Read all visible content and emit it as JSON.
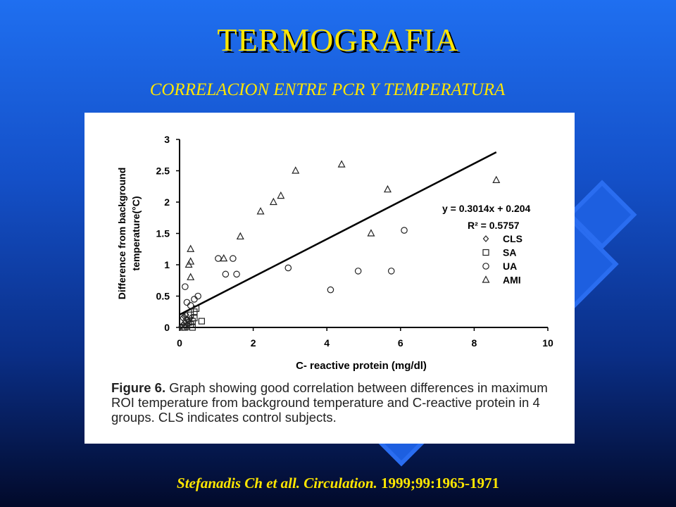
{
  "slide": {
    "title": "TERMOGRAFIA",
    "subtitle": "CORRELACION ENTRE PCR Y TEMPERATURA",
    "citation_authors": "Stefanadis Ch et all.",
    "citation_journal": "Circulation.",
    "citation_ref": "1999;99:1965-1971",
    "colors": {
      "background": "#1450c8",
      "text": "#ffe600"
    }
  },
  "figure": {
    "caption_label": "Figure 6.",
    "caption_text": "Graph showing good correlation between differences in maximum ROI temperature from background temperature and C-reactive protein in 4 groups. CLS indicates control subjects."
  },
  "chart_data": {
    "type": "scatter",
    "xlabel": "C- reactive protein (mg/dl)",
    "ylabel_line1": "Difference from background",
    "ylabel_line2": "temperature(°C)",
    "xlim": [
      0,
      10
    ],
    "ylim": [
      0,
      3
    ],
    "xticks": [
      0,
      2,
      4,
      6,
      8,
      10
    ],
    "yticks": [
      0,
      0.5,
      1,
      1.5,
      2,
      2.5,
      3
    ],
    "equation": "y = 0.3014x + 0.204",
    "r2": "R² = 0.5757",
    "fit": {
      "slope": 0.3014,
      "intercept": 0.204,
      "x_range": [
        0,
        8.6
      ]
    },
    "legend_position": "right",
    "series": [
      {
        "name": "CLS",
        "marker": "diamond",
        "points": [
          [
            0.05,
            0.02
          ],
          [
            0.1,
            0.05
          ],
          [
            0.15,
            0.08
          ],
          [
            0.2,
            0.12
          ],
          [
            0.25,
            0.1
          ],
          [
            0.08,
            0.15
          ],
          [
            0.18,
            0.2
          ],
          [
            0.22,
            0.05
          ],
          [
            0.3,
            0.15
          ],
          [
            0.12,
            0.18
          ]
        ]
      },
      {
        "name": "SA",
        "marker": "square",
        "points": [
          [
            0.1,
            0.0
          ],
          [
            0.2,
            0.02
          ],
          [
            0.3,
            0.05
          ],
          [
            0.35,
            0.1
          ],
          [
            0.4,
            0.15
          ],
          [
            0.3,
            0.2
          ],
          [
            0.4,
            0.25
          ],
          [
            0.45,
            0.3
          ],
          [
            0.6,
            0.1
          ],
          [
            0.25,
            0.08
          ],
          [
            0.15,
            0.0
          ],
          [
            0.35,
            0.0
          ]
        ]
      },
      {
        "name": "UA",
        "marker": "circle",
        "points": [
          [
            0.15,
            0.65
          ],
          [
            0.2,
            0.4
          ],
          [
            0.3,
            0.35
          ],
          [
            0.5,
            0.5
          ],
          [
            0.4,
            0.45
          ],
          [
            1.05,
            1.1
          ],
          [
            1.25,
            0.85
          ],
          [
            1.45,
            1.1
          ],
          [
            1.55,
            0.85
          ],
          [
            2.95,
            0.95
          ],
          [
            4.1,
            0.6
          ],
          [
            4.85,
            0.9
          ],
          [
            5.75,
            0.9
          ],
          [
            6.1,
            1.55
          ]
        ]
      },
      {
        "name": "AMI",
        "marker": "triangle",
        "points": [
          [
            0.25,
            1.0
          ],
          [
            0.3,
            1.25
          ],
          [
            0.3,
            1.05
          ],
          [
            0.3,
            0.8
          ],
          [
            1.2,
            1.1
          ],
          [
            1.65,
            1.45
          ],
          [
            2.2,
            1.85
          ],
          [
            2.55,
            2.0
          ],
          [
            2.75,
            2.1
          ],
          [
            3.15,
            2.5
          ],
          [
            4.4,
            2.6
          ],
          [
            5.2,
            1.5
          ],
          [
            5.65,
            2.2
          ],
          [
            8.6,
            2.35
          ]
        ]
      }
    ]
  }
}
